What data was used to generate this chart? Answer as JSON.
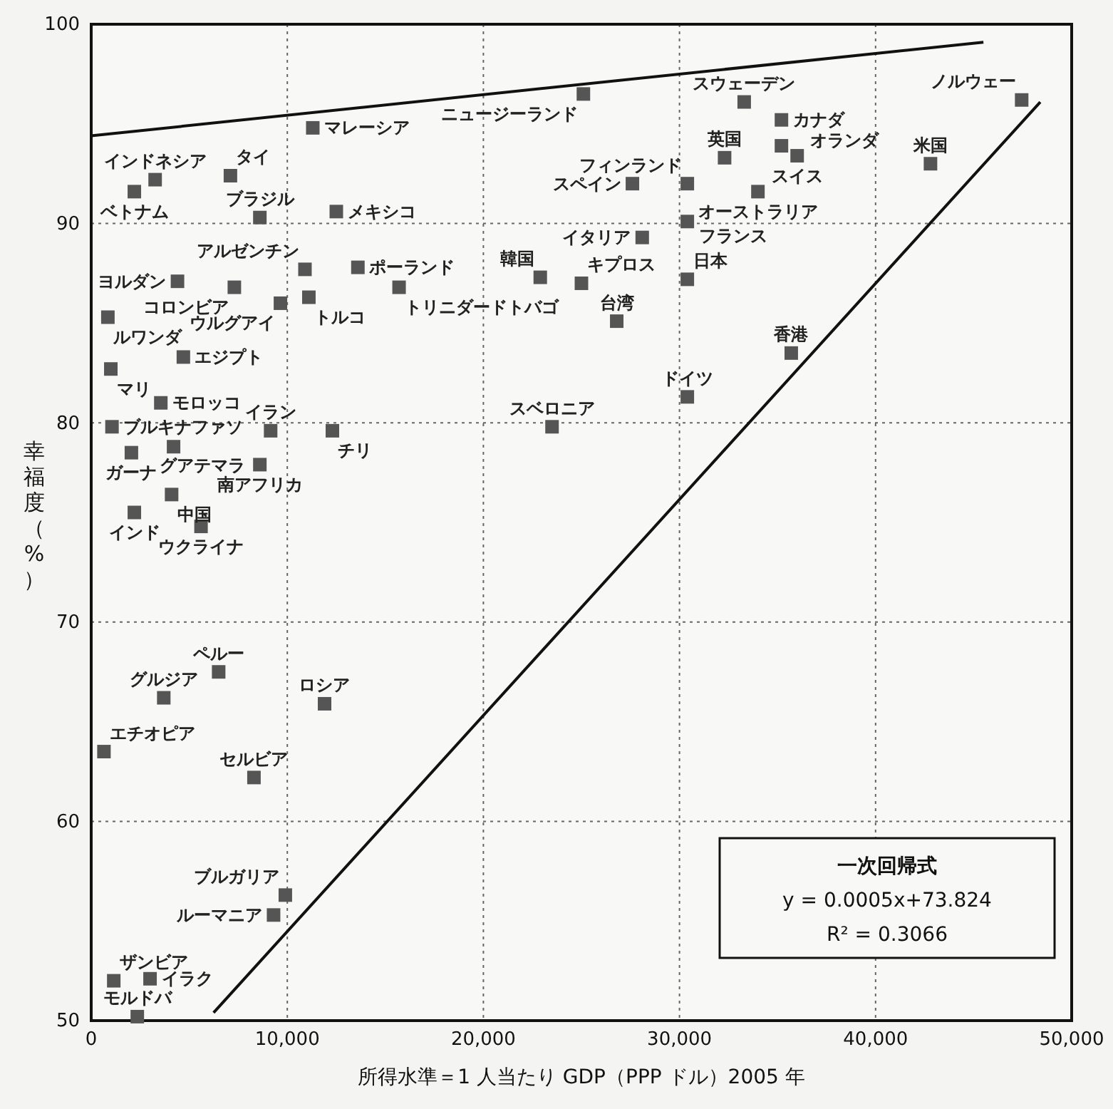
{
  "chart_data": {
    "type": "scatter",
    "xlabel": "所得水準＝1 人当たり GDP（PPP ドル）2005 年",
    "ylabel": "幸福度（%）",
    "xlim": [
      0,
      50000
    ],
    "xticks": [
      0,
      {
        "value": 10000,
        "label": "10,000"
      },
      {
        "value": 20000,
        "label": "20,000"
      },
      {
        "value": 30000,
        "label": "30,000"
      },
      {
        "value": 40000,
        "label": "40,000"
      },
      {
        "value": 50000,
        "label": "50,000"
      }
    ],
    "ylim": [
      50,
      100
    ],
    "yticks": [
      50,
      60,
      70,
      80,
      90,
      100
    ],
    "grid": true,
    "series": [
      {
        "color": "#555555",
        "marker": "square",
        "x": [
          47450,
          42800,
          33300,
          35200,
          35200,
          36000,
          32300,
          34000,
          30400,
          30400,
          27600,
          25100,
          28100,
          22900,
          25000,
          30400,
          26800,
          35700,
          30400,
          23500,
          11300,
          3260,
          2200,
          7100,
          8600,
          12500,
          10900,
          13600,
          15700,
          4400,
          7300,
          9650,
          11100,
          850,
          4700,
          1000,
          3550,
          1060,
          9150,
          12300,
          2050,
          4200,
          8600,
          4100,
          2200,
          5600,
          6500,
          3700,
          11900,
          650,
          8300,
          9900,
          9300,
          1150,
          3000,
          2350
        ],
        "values": [
          96.2,
          93.0,
          96.1,
          95.2,
          93.9,
          93.4,
          93.3,
          91.6,
          92.0,
          90.1,
          92.0,
          96.5,
          89.3,
          87.3,
          87.0,
          87.2,
          85.1,
          83.5,
          81.3,
          79.8,
          94.8,
          92.2,
          91.6,
          92.4,
          90.3,
          90.6,
          87.7,
          87.8,
          86.8,
          87.1,
          86.8,
          86.0,
          86.3,
          85.3,
          83.3,
          82.7,
          81.0,
          79.8,
          79.6,
          79.6,
          78.5,
          78.8,
          77.9,
          76.4,
          75.5,
          74.8,
          67.5,
          66.2,
          65.9,
          63.5,
          62.2,
          56.3,
          55.3,
          52.0,
          52.1,
          50.2
        ]
      },
      {
        "type": "line",
        "color": "#111111",
        "x": [
          0,
          45500
        ],
        "values": [
          94.4,
          99.1
        ]
      },
      {
        "type": "line",
        "color": "#111111",
        "x": [
          6240,
          48400
        ],
        "values": [
          50.4,
          96.1
        ]
      }
    ],
    "annotations": [
      {
        "text": "ノルウェー",
        "x": 47450,
        "y": 96.2
      },
      {
        "text": "米国",
        "x": 42800,
        "y": 93.0
      },
      {
        "text": "スウェーデン",
        "x": 33300,
        "y": 96.1
      },
      {
        "text": "カナダ",
        "x": 35200,
        "y": 95.2
      },
      {
        "text": "オランダ",
        "x": 35200,
        "y": 93.9
      },
      {
        "text": "スイス",
        "x": 36000,
        "y": 93.4
      },
      {
        "text": "英国",
        "x": 32300,
        "y": 93.3
      },
      {
        "text": "オーストラリア",
        "x": 34000,
        "y": 91.6
      },
      {
        "text": "フィンランド",
        "x": 30400,
        "y": 92.0
      },
      {
        "text": "フランス",
        "x": 30400,
        "y": 90.1
      },
      {
        "text": "スペイン",
        "x": 27600,
        "y": 92.0
      },
      {
        "text": "ニュージーランド",
        "x": 25100,
        "y": 96.5
      },
      {
        "text": "イタリア",
        "x": 28100,
        "y": 89.3
      },
      {
        "text": "韓国",
        "x": 22900,
        "y": 87.3
      },
      {
        "text": "キプロス",
        "x": 25000,
        "y": 87.0
      },
      {
        "text": "日本",
        "x": 30400,
        "y": 87.2
      },
      {
        "text": "台湾",
        "x": 26800,
        "y": 85.1
      },
      {
        "text": "香港",
        "x": 35700,
        "y": 83.5
      },
      {
        "text": "ドイツ",
        "x": 30400,
        "y": 81.3
      },
      {
        "text": "スベロニア",
        "x": 23500,
        "y": 79.8
      },
      {
        "text": "マレーシア",
        "x": 11300,
        "y": 94.8
      },
      {
        "text": "インドネシア",
        "x": 3260,
        "y": 92.2
      },
      {
        "text": "ベトナム",
        "x": 2200,
        "y": 91.6
      },
      {
        "text": "タイ",
        "x": 7100,
        "y": 92.4
      },
      {
        "text": "ブラジル",
        "x": 8600,
        "y": 90.3
      },
      {
        "text": "メキシコ",
        "x": 12500,
        "y": 90.6
      },
      {
        "text": "アルゼンチン",
        "x": 10900,
        "y": 87.7
      },
      {
        "text": "ポーランド",
        "x": 13600,
        "y": 87.8
      },
      {
        "text": "トリニダードトバゴ",
        "x": 15700,
        "y": 86.8
      },
      {
        "text": "ヨルダン",
        "x": 4400,
        "y": 87.1
      },
      {
        "text": "コロンビア",
        "x": 7300,
        "y": 86.8
      },
      {
        "text": "ウルグアイ",
        "x": 9650,
        "y": 86.0
      },
      {
        "text": "トルコ",
        "x": 11100,
        "y": 86.3
      },
      {
        "text": "ルワンダ",
        "x": 850,
        "y": 85.3
      },
      {
        "text": "エジプト",
        "x": 4700,
        "y": 83.3
      },
      {
        "text": "マリ",
        "x": 1000,
        "y": 82.7
      },
      {
        "text": "モロッコ",
        "x": 3550,
        "y": 81.0
      },
      {
        "text": "ブルキナファソ",
        "x": 1060,
        "y": 79.8
      },
      {
        "text": "イラン",
        "x": 9150,
        "y": 79.6
      },
      {
        "text": "チリ",
        "x": 12300,
        "y": 79.6
      },
      {
        "text": "ガーナ",
        "x": 2050,
        "y": 78.5
      },
      {
        "text": "グアテマラ",
        "x": 4200,
        "y": 78.8
      },
      {
        "text": "南アフリカ",
        "x": 8600,
        "y": 77.9
      },
      {
        "text": "中国",
        "x": 4100,
        "y": 76.4
      },
      {
        "text": "インド",
        "x": 2200,
        "y": 75.5
      },
      {
        "text": "ウクライナ",
        "x": 5600,
        "y": 74.8
      },
      {
        "text": "ペルー",
        "x": 6500,
        "y": 67.5
      },
      {
        "text": "グルジア",
        "x": 3700,
        "y": 66.2
      },
      {
        "text": "ロシア",
        "x": 11900,
        "y": 65.9
      },
      {
        "text": "エチオピア",
        "x": 650,
        "y": 63.5
      },
      {
        "text": "セルビア",
        "x": 8300,
        "y": 62.2
      },
      {
        "text": "ブルガリア",
        "x": 9900,
        "y": 56.3
      },
      {
        "text": "ルーマニア",
        "x": 9300,
        "y": 55.3
      },
      {
        "text": "ザンビア",
        "x": 1150,
        "y": 52.0
      },
      {
        "text": "イラク",
        "x": 3000,
        "y": 52.1
      },
      {
        "text": "モルドバ",
        "x": 2350,
        "y": 50.2
      },
      "一次回帰式",
      "y = 0.0005x+73.824",
      "R² = 0.3066"
    ]
  }
}
